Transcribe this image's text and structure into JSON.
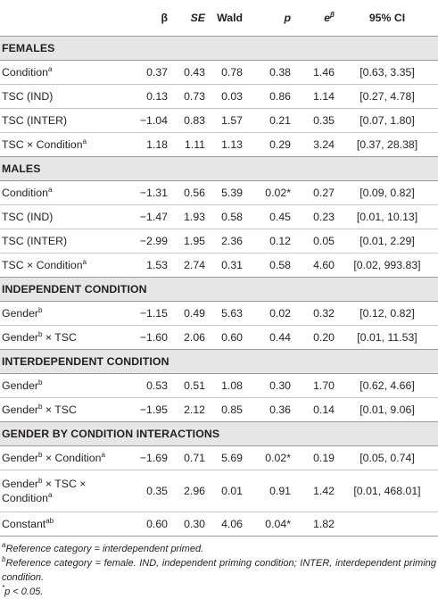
{
  "header": {
    "beta": "β",
    "se": "SE",
    "wald": "Wald",
    "p": "p",
    "e": "e",
    "e_sup": "β",
    "ci": "95% CI"
  },
  "sections": [
    {
      "title": "FEMALES",
      "rows": [
        {
          "label": "Condition",
          "sup": "a",
          "label2": "",
          "sup2": "",
          "beta": "0.37",
          "se": "0.43",
          "wald": "0.78",
          "p": "0.38",
          "e": "1.46",
          "ci": "[0.63, 3.35]"
        },
        {
          "label": "TSC (IND)",
          "sup": "",
          "label2": "",
          "sup2": "",
          "beta": "0.13",
          "se": "0.73",
          "wald": "0.03",
          "p": "0.86",
          "e": "1.14",
          "ci": "[0.27, 4.78]"
        },
        {
          "label": "TSC (INTER)",
          "sup": "",
          "label2": "",
          "sup2": "",
          "beta": "−1.04",
          "se": "0.83",
          "wald": "1.57",
          "p": "0.21",
          "e": "0.35",
          "ci": "[0.07, 1.80]"
        },
        {
          "label": "TSC × Condition",
          "sup": "a",
          "label2": "",
          "sup2": "",
          "beta": "1.18",
          "se": "1.11",
          "wald": "1.13",
          "p": "0.29",
          "e": "3.24",
          "ci": "[0.37, 28.38]"
        }
      ]
    },
    {
      "title": "MALES",
      "rows": [
        {
          "label": "Condition",
          "sup": "a",
          "label2": "",
          "sup2": "",
          "beta": "−1.31",
          "se": "0.56",
          "wald": "5.39",
          "p": "0.02*",
          "e": "0.27",
          "ci": "[0.09, 0.82]"
        },
        {
          "label": "TSC (IND)",
          "sup": "",
          "label2": "",
          "sup2": "",
          "beta": "−1.47",
          "se": "1.93",
          "wald": "0.58",
          "p": "0.45",
          "e": "0.23",
          "ci": "[0.01, 10.13]"
        },
        {
          "label": "TSC (INTER)",
          "sup": "",
          "label2": "",
          "sup2": "",
          "beta": "−2.99",
          "se": "1.95",
          "wald": "2.36",
          "p": "0.12",
          "e": "0.05",
          "ci": "[0.01, 2.29]"
        },
        {
          "label": "TSC × Condition",
          "sup": "a",
          "label2": "",
          "sup2": "",
          "beta": "1.53",
          "se": "2.74",
          "wald": "0.31",
          "p": "0.58",
          "e": "4.60",
          "ci": "[0.02, 993.83]"
        }
      ]
    },
    {
      "title": "INDEPENDENT CONDITION",
      "rows": [
        {
          "label": "Gender",
          "sup": "b",
          "label2": "",
          "sup2": "",
          "beta": "−1.15",
          "se": "0.49",
          "wald": "5.63",
          "p": "0.02",
          "e": "0.32",
          "ci": "[0.12, 0.82]"
        },
        {
          "label": "Gender",
          "sup": "b",
          "label2": " × TSC",
          "sup2": "",
          "beta": "−1.60",
          "se": "2.06",
          "wald": "0.60",
          "p": "0.44",
          "e": "0.20",
          "ci": "[0.01, 11.53]"
        }
      ]
    },
    {
      "title": "INTERDEPENDENT CONDITION",
      "rows": [
        {
          "label": "Gender",
          "sup": "b",
          "label2": "",
          "sup2": "",
          "beta": "0.53",
          "se": "0.51",
          "wald": "1.08",
          "p": "0.30",
          "e": "1.70",
          "ci": "[0.62, 4.66]"
        },
        {
          "label": "Gender",
          "sup": "b",
          "label2": " × TSC",
          "sup2": "",
          "beta": "−1.95",
          "se": "2.12",
          "wald": "0.85",
          "p": "0.36",
          "e": "0.14",
          "ci": "[0.01, 9.06]"
        }
      ]
    },
    {
      "title": "GENDER BY CONDITION INTERACTIONS",
      "rows": [
        {
          "label": "Gender",
          "sup": "b",
          "label2": " × Condition",
          "sup2": "a",
          "beta": "−1.69",
          "se": "0.71",
          "wald": "5.69",
          "p": "0.02*",
          "e": "0.19",
          "ci": "[0.05, 0.74]"
        },
        {
          "label": "Gender",
          "sup": "b",
          "label2": " × TSC × Condition",
          "sup2": "a",
          "beta": "0.35",
          "se": "2.96",
          "wald": "0.01",
          "p": "0.91",
          "e": "1.42",
          "ci": "[0.01, 468.01]"
        },
        {
          "label": "Constant",
          "sup": "ab",
          "label2": "",
          "sup2": "",
          "beta": "0.60",
          "se": "0.30",
          "wald": "4.06",
          "p": "0.04*",
          "e": "1.82",
          "ci": ""
        }
      ]
    }
  ],
  "notes": [
    {
      "sup": "a",
      "text": "Reference category = interdependent primed."
    },
    {
      "sup": "b",
      "text": "Reference category = female. IND, independent priming condition; INTER, interdependent priming condition."
    },
    {
      "sup": "*",
      "text": "p < 0.05."
    }
  ]
}
